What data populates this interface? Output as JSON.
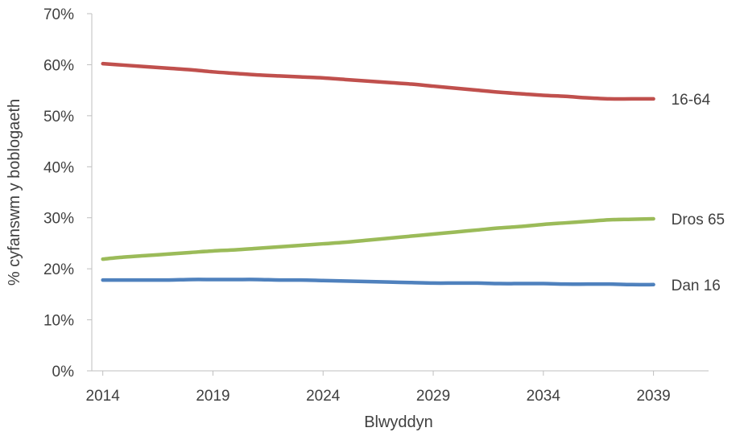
{
  "chart_data": {
    "type": "line",
    "xlabel": "Blwyddyn",
    "ylabel": "% cyfanswm y boblogaeth",
    "ylim": [
      0,
      70
    ],
    "y_ticks": [
      "0%",
      "10%",
      "20%",
      "30%",
      "40%",
      "50%",
      "60%",
      "70%"
    ],
    "y_tick_values": [
      0,
      10,
      20,
      30,
      40,
      50,
      60,
      70
    ],
    "xlim": [
      2013.5,
      2041.5
    ],
    "x_ticks": [
      "2014",
      "2019",
      "2024",
      "2029",
      "2034",
      "2039"
    ],
    "x_tick_values": [
      2014,
      2019,
      2024,
      2029,
      2034,
      2039
    ],
    "grid": false,
    "legend": "labels at line ends (right)",
    "x": [
      2014,
      2015,
      2016,
      2017,
      2018,
      2019,
      2020,
      2021,
      2022,
      2023,
      2024,
      2025,
      2026,
      2027,
      2028,
      2029,
      2030,
      2031,
      2032,
      2033,
      2034,
      2035,
      2036,
      2037,
      2038,
      2039
    ],
    "series": [
      {
        "name": "16-64",
        "color": "#c0504d",
        "values": [
          60.2,
          59.9,
          59.6,
          59.3,
          59.0,
          58.6,
          58.3,
          58.0,
          57.8,
          57.6,
          57.4,
          57.1,
          56.8,
          56.5,
          56.2,
          55.8,
          55.4,
          55.0,
          54.6,
          54.3,
          54.0,
          53.8,
          53.5,
          53.3,
          53.3,
          53.3
        ]
      },
      {
        "name": "Dros 65",
        "color": "#9bbb59",
        "values": [
          21.9,
          22.3,
          22.6,
          22.9,
          23.2,
          23.5,
          23.7,
          24.0,
          24.3,
          24.6,
          24.9,
          25.2,
          25.6,
          26.0,
          26.4,
          26.8,
          27.2,
          27.6,
          28.0,
          28.3,
          28.7,
          29.0,
          29.3,
          29.6,
          29.7,
          29.8
        ]
      },
      {
        "name": "Dan 16",
        "color": "#4f81bd",
        "values": [
          17.8,
          17.8,
          17.8,
          17.8,
          17.9,
          17.9,
          17.9,
          17.9,
          17.8,
          17.8,
          17.7,
          17.6,
          17.5,
          17.4,
          17.3,
          17.2,
          17.2,
          17.2,
          17.1,
          17.1,
          17.1,
          17.0,
          17.0,
          17.0,
          16.9,
          16.9
        ]
      }
    ]
  }
}
